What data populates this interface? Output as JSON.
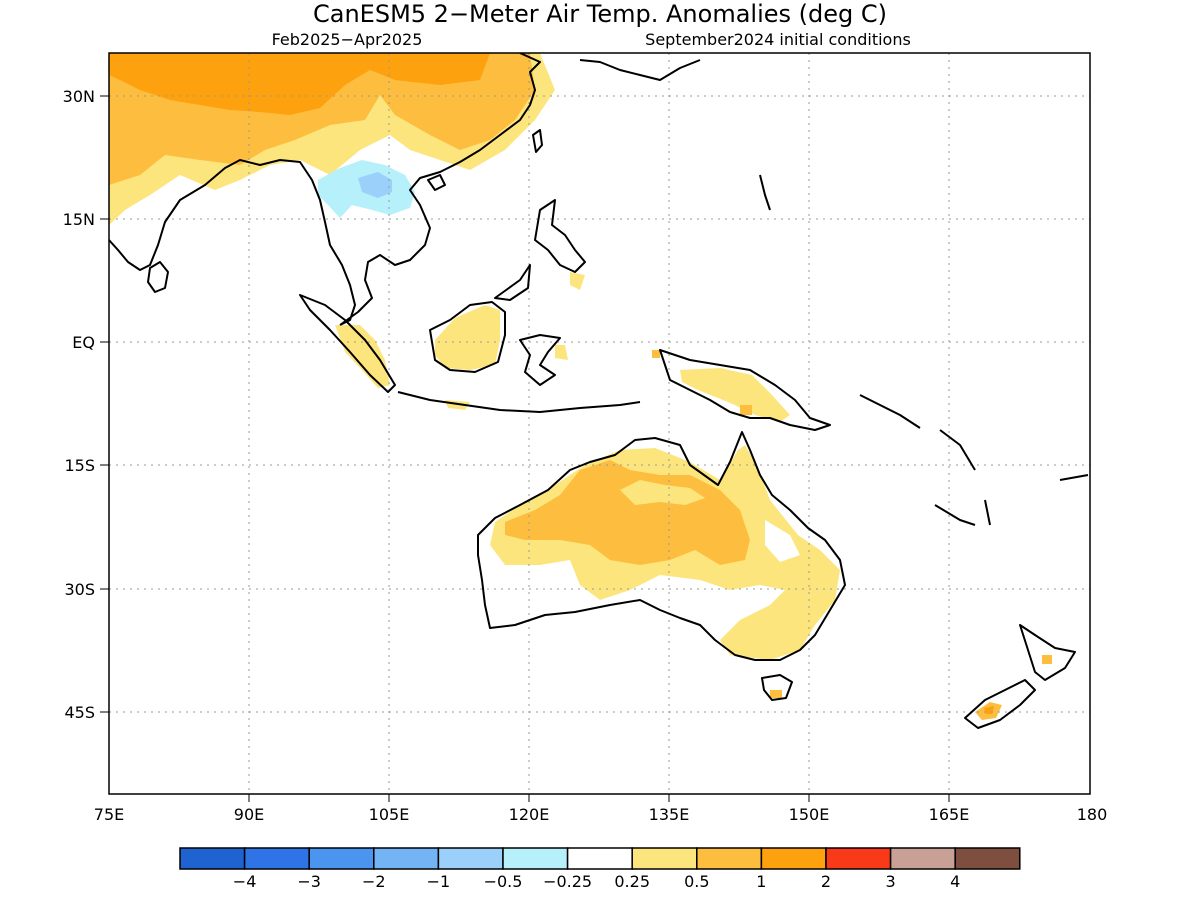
{
  "title": "CanESM5 2−Meter Air Temp. Anomalies (deg C)",
  "subtitle_left": "Feb2025−Apr2025",
  "subtitle_right": "September2024 initial conditions",
  "map": {
    "lat_ticks": [
      "30N",
      "15N",
      "EQ",
      "15S",
      "30S",
      "45S"
    ],
    "lon_ticks": [
      "75E",
      "90E",
      "105E",
      "120E",
      "135E",
      "150E",
      "165E",
      "180"
    ],
    "grid": true
  },
  "colorbar": {
    "colors": [
      "#1f63d1",
      "#2f74e6",
      "#4a95ef",
      "#73b4f5",
      "#9ad0fa",
      "#b6f0fb",
      "#ffffff",
      "#fde57e",
      "#fdbd3e",
      "#fda10f",
      "#f93a18",
      "#c8a095",
      "#7e4f3e"
    ],
    "labels": [
      "−4",
      "−3",
      "−2",
      "−1",
      "−0.5",
      "−0.25",
      "0.25",
      "0.5",
      "1",
      "2",
      "3",
      "4"
    ]
  },
  "palette": {
    "pos_025": "#fde57e",
    "pos_05": "#fdbd3e",
    "pos_1": "#fda10f",
    "neg_025": "#b6f0fb",
    "neg_05": "#9ad0fa"
  }
}
